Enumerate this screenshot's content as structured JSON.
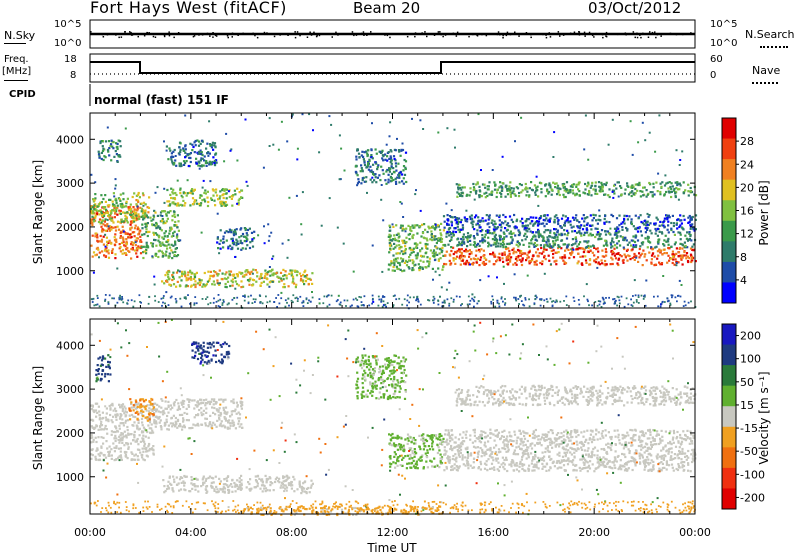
{
  "header": {
    "title": "Fort Hays West (fitACF)",
    "beam": "Beam 20",
    "date": "03/Oct/2012"
  },
  "top_panels": {
    "nsky_label": "N.Sky",
    "nsky_ticks": [
      "10^5",
      "10^0"
    ],
    "nsearch_label": "N.Search",
    "nsearch_ticks": [
      "10^5",
      "10^0"
    ],
    "freq_label": "Freq.",
    "freq_unit": "[MHz]",
    "freq_ticks": [
      "18",
      "8"
    ],
    "nave_label": "Nave",
    "nave_ticks": [
      "60",
      "0"
    ],
    "cpid_label": "CPID",
    "cpid_text": "normal (fast) 151 IF"
  },
  "colors": {
    "power_scale": [
      "#0000ff",
      "#1e4ca8",
      "#2e7b6a",
      "#3a9a4a",
      "#80c040",
      "#e0c020",
      "#f08020",
      "#f04010",
      "#e00000"
    ],
    "velocity_scale": [
      "#1818c0",
      "#1e3a80",
      "#2a7a3a",
      "#60b030",
      "#c8c8c0",
      "#f0a020",
      "#f07010",
      "#f03010",
      "#e00000"
    ]
  },
  "chart_data": [
    {
      "type": "heatmap",
      "title": "",
      "xlabel": "",
      "ylabel": "Slant Range [km]",
      "xlim": [
        "00:00",
        "24:00"
      ],
      "ylim": [
        150,
        4600
      ],
      "yticks": [
        "1000",
        "2000",
        "3000",
        "4000"
      ],
      "colorbar": {
        "label": "Power [dB]",
        "ticks": [
          "4",
          "8",
          "12",
          "16",
          "20",
          "24",
          "28"
        ],
        "range": [
          0,
          32
        ]
      },
      "bands": [
        {
          "x": [
            0.0,
            2.0
          ],
          "y": [
            1300,
            2500
          ],
          "value": 24
        },
        {
          "x": [
            0.0,
            1.5
          ],
          "y": [
            2100,
            2800
          ],
          "value": 16
        },
        {
          "x": [
            0.3,
            1.2
          ],
          "y": [
            3500,
            4000
          ],
          "value": 10
        },
        {
          "x": [
            1.5,
            2.3
          ],
          "y": [
            2200,
            2800
          ],
          "value": 18
        },
        {
          "x": [
            2.0,
            3.5
          ],
          "y": [
            1300,
            2400
          ],
          "value": 14
        },
        {
          "x": [
            3.0,
            6.0
          ],
          "y": [
            2500,
            2900
          ],
          "value": 16
        },
        {
          "x": [
            3.0,
            5.0
          ],
          "y": [
            3400,
            4000
          ],
          "value": 8
        },
        {
          "x": [
            5.0,
            6.5
          ],
          "y": [
            1500,
            2000
          ],
          "value": 8
        },
        {
          "x": [
            2.8,
            8.8
          ],
          "y": [
            650,
            1050
          ],
          "value": 18
        },
        {
          "x": [
            10.5,
            12.5
          ],
          "y": [
            3000,
            3800
          ],
          "value": 8
        },
        {
          "x": [
            11.8,
            14.0
          ],
          "y": [
            1000,
            2100
          ],
          "value": 14
        },
        {
          "x": [
            14.0,
            24.0
          ],
          "y": [
            1150,
            1550
          ],
          "value": 26
        },
        {
          "x": [
            14.0,
            24.0
          ],
          "y": [
            1550,
            1900
          ],
          "value": 10
        },
        {
          "x": [
            14.0,
            24.0
          ],
          "y": [
            1900,
            2300
          ],
          "value": 6
        },
        {
          "x": [
            14.5,
            24.0
          ],
          "y": [
            2700,
            3050
          ],
          "value": 12
        }
      ]
    },
    {
      "type": "heatmap",
      "title": "",
      "xlabel": "Time UT",
      "ylabel": "Slant Range [km]",
      "xlim": [
        "00:00",
        "24:00"
      ],
      "ylim": [
        150,
        4600
      ],
      "xticks": [
        "00:00",
        "04:00",
        "08:00",
        "12:00",
        "16:00",
        "20:00",
        "00:00"
      ],
      "yticks": [
        "1000",
        "2000",
        "3000",
        "4000"
      ],
      "colorbar": {
        "label": "Velocity [m s⁻¹]",
        "ticks": [
          "200",
          "100",
          "50",
          "15",
          "-15",
          "-50",
          "-100",
          "-200"
        ],
        "range": [
          -250,
          250
        ]
      },
      "bands": [
        {
          "x": [
            0.0,
            2.5
          ],
          "y": [
            1400,
            2700
          ],
          "value": 0
        },
        {
          "x": [
            0.2,
            0.8
          ],
          "y": [
            3200,
            3800
          ],
          "value": 150
        },
        {
          "x": [
            1.5,
            2.5
          ],
          "y": [
            2300,
            2800
          ],
          "value": -80
        },
        {
          "x": [
            2.5,
            6.0
          ],
          "y": [
            2100,
            2800
          ],
          "value": 0
        },
        {
          "x": [
            4.0,
            5.5
          ],
          "y": [
            3600,
            4100
          ],
          "value": 180
        },
        {
          "x": [
            2.8,
            8.8
          ],
          "y": [
            650,
            1050
          ],
          "value": 0
        },
        {
          "x": [
            10.5,
            12.5
          ],
          "y": [
            2800,
            3800
          ],
          "value": 40
        },
        {
          "x": [
            11.8,
            14.0
          ],
          "y": [
            1200,
            2000
          ],
          "value": 40
        },
        {
          "x": [
            14.0,
            24.0
          ],
          "y": [
            1150,
            2100
          ],
          "value": 0
        },
        {
          "x": [
            14.5,
            24.0
          ],
          "y": [
            2650,
            3100
          ],
          "value": 0
        },
        {
          "x": [
            6.0,
            14.0
          ],
          "y": [
            150,
            350
          ],
          "value": -40
        }
      ]
    }
  ]
}
